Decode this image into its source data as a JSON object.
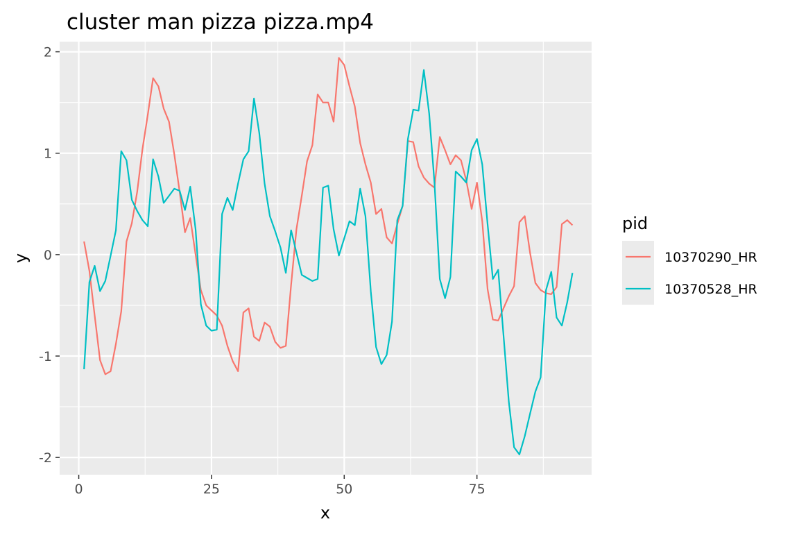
{
  "chart_data": {
    "type": "line",
    "title": "cluster man pizza pizza.mp4",
    "xlabel": "x",
    "ylabel": "y",
    "xlim": [
      -3.6,
      96.6
    ],
    "ylim": [
      -2.17,
      2.1
    ],
    "xticks": [
      0,
      25,
      50,
      75
    ],
    "xtick_labels": [
      "0",
      "25",
      "50",
      "75"
    ],
    "yticks": [
      -2,
      -1,
      0,
      1,
      2
    ],
    "ytick_labels": [
      "-2",
      "-1",
      "0",
      "1",
      "2"
    ],
    "grid": true,
    "legend": {
      "title": "pid",
      "position": "right"
    },
    "series": [
      {
        "name": "10370290_HR",
        "color": "#F8766D",
        "x": [
          1,
          2,
          3,
          4,
          5,
          6,
          7,
          8,
          9,
          10,
          11,
          12,
          13,
          14,
          15,
          16,
          17,
          18,
          19,
          20,
          21,
          22,
          23,
          24,
          25,
          26,
          27,
          28,
          29,
          30,
          31,
          32,
          33,
          34,
          35,
          36,
          37,
          38,
          39,
          40,
          41,
          42,
          43,
          44,
          45,
          46,
          47,
          48,
          49,
          50,
          51,
          52,
          53,
          54,
          55,
          56,
          57,
          58,
          59,
          60,
          61,
          62,
          63,
          64,
          65,
          66,
          67,
          68,
          69,
          70,
          71,
          72,
          73,
          74,
          75,
          76,
          77,
          78,
          79,
          80,
          81,
          82,
          83,
          84,
          85,
          86,
          87,
          88,
          89,
          90,
          91,
          92,
          93
        ],
        "y": [
          0.13,
          -0.16,
          -0.6,
          -1.04,
          -1.18,
          -1.15,
          -0.88,
          -0.56,
          0.13,
          0.31,
          0.62,
          1.04,
          1.38,
          1.74,
          1.66,
          1.44,
          1.31,
          0.99,
          0.62,
          0.22,
          0.36,
          0.0,
          -0.35,
          -0.5,
          -0.55,
          -0.6,
          -0.7,
          -0.9,
          -1.05,
          -1.15,
          -0.57,
          -0.53,
          -0.81,
          -0.85,
          -0.67,
          -0.71,
          -0.86,
          -0.92,
          -0.9,
          -0.3,
          0.25,
          0.58,
          0.92,
          1.08,
          1.58,
          1.5,
          1.5,
          1.31,
          1.94,
          1.87,
          1.66,
          1.46,
          1.1,
          0.89,
          0.71,
          0.4,
          0.45,
          0.17,
          0.11,
          0.3,
          0.48,
          1.12,
          1.11,
          0.87,
          0.76,
          0.7,
          0.66,
          1.16,
          1.03,
          0.89,
          0.98,
          0.93,
          0.73,
          0.45,
          0.71,
          0.33,
          -0.34,
          -0.64,
          -0.65,
          -0.53,
          -0.41,
          -0.31,
          0.32,
          0.38,
          0.02,
          -0.28,
          -0.35,
          -0.38,
          -0.39,
          -0.32,
          0.3,
          0.34,
          0.29
        ]
      },
      {
        "name": "10370528_HR",
        "color": "#00BFC4",
        "x": [
          1,
          2,
          3,
          4,
          5,
          6,
          7,
          8,
          9,
          10,
          11,
          12,
          13,
          14,
          15,
          16,
          17,
          18,
          19,
          20,
          21,
          22,
          23,
          24,
          25,
          26,
          27,
          28,
          29,
          30,
          31,
          32,
          33,
          34,
          35,
          36,
          37,
          38,
          39,
          40,
          41,
          42,
          43,
          44,
          45,
          46,
          47,
          48,
          49,
          50,
          51,
          52,
          53,
          54,
          55,
          56,
          57,
          58,
          59,
          60,
          61,
          62,
          63,
          64,
          65,
          66,
          67,
          68,
          69,
          70,
          71,
          72,
          73,
          74,
          75,
          76,
          77,
          78,
          79,
          80,
          81,
          82,
          83,
          84,
          85,
          86,
          87,
          88,
          89,
          90,
          91,
          92,
          93
        ],
        "y": [
          -1.13,
          -0.27,
          -0.11,
          -0.36,
          -0.26,
          -0.01,
          0.24,
          1.02,
          0.93,
          0.54,
          0.43,
          0.34,
          0.28,
          0.94,
          0.77,
          0.51,
          0.58,
          0.65,
          0.63,
          0.44,
          0.67,
          0.25,
          -0.49,
          -0.7,
          -0.75,
          -0.74,
          0.4,
          0.56,
          0.44,
          0.7,
          0.94,
          1.02,
          1.54,
          1.2,
          0.7,
          0.38,
          0.23,
          0.07,
          -0.18,
          0.24,
          0.02,
          -0.2,
          -0.23,
          -0.26,
          -0.24,
          0.66,
          0.68,
          0.25,
          -0.01,
          0.16,
          0.33,
          0.29,
          0.65,
          0.38,
          -0.36,
          -0.91,
          -1.08,
          -0.99,
          -0.66,
          0.34,
          0.48,
          1.14,
          1.43,
          1.42,
          1.82,
          1.39,
          0.71,
          -0.24,
          -0.43,
          -0.22,
          0.82,
          0.77,
          0.71,
          1.03,
          1.14,
          0.89,
          0.3,
          -0.24,
          -0.15,
          -0.79,
          -1.45,
          -1.9,
          -1.97,
          -1.79,
          -1.57,
          -1.35,
          -1.21,
          -0.35,
          -0.17,
          -0.62,
          -0.7,
          -0.47,
          -0.18
        ]
      }
    ]
  }
}
